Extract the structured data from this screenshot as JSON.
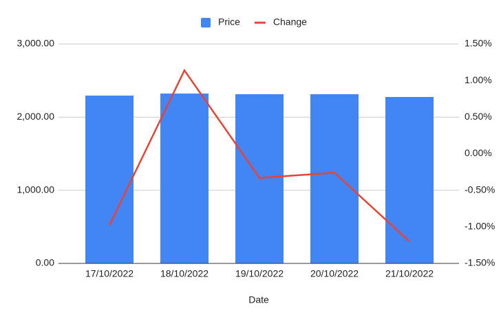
{
  "chart_data": {
    "type": "bar-line",
    "x_label": "Date",
    "categories": [
      "17/10/2022",
      "18/10/2022",
      "19/10/2022",
      "20/10/2022",
      "21/10/2022"
    ],
    "series": [
      {
        "name": "Price",
        "type": "bar",
        "color": "#4285f4",
        "axis": "y",
        "values": [
          2295,
          2323,
          2314,
          2314,
          2276
        ]
      },
      {
        "name": "Change",
        "type": "line",
        "color": "#ea4335",
        "axis": "y2",
        "values": [
          -0.98,
          1.14,
          -0.33,
          -0.26,
          -1.2
        ]
      }
    ],
    "ylim": [
      0,
      3000
    ],
    "yticks": [
      {
        "value": 0,
        "label": "0.00"
      },
      {
        "value": 1000,
        "label": "1,000.00"
      },
      {
        "value": 2000,
        "label": "2,000.00"
      },
      {
        "value": 3000,
        "label": "3,000.00"
      }
    ],
    "y2lim": [
      -1.5,
      1.5
    ],
    "y2ticks": [
      {
        "value": -1.5,
        "label": "-1.50%"
      },
      {
        "value": -1,
        "label": "-1.00%"
      },
      {
        "value": -0.5,
        "label": "-0.50%"
      },
      {
        "value": 0,
        "label": "0.00%"
      },
      {
        "value": 0.5,
        "label": "0.50%"
      },
      {
        "value": 1,
        "label": "1.00%"
      },
      {
        "value": 1.5,
        "label": "1.50%"
      }
    ],
    "grid": true,
    "legend": "top"
  }
}
